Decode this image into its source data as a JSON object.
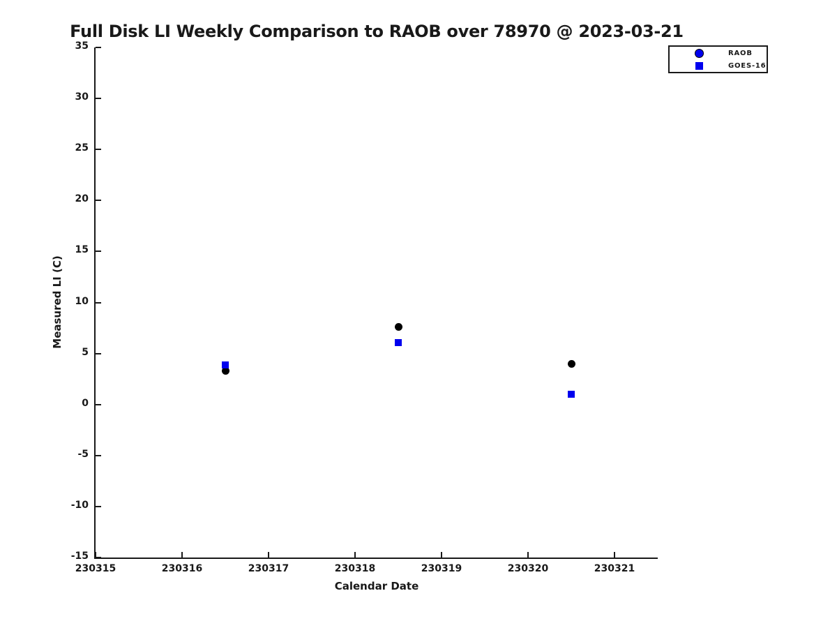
{
  "chart_data": {
    "type": "scatter",
    "title": "Full Disk LI Weekly Comparison to RAOB over 78970 @ 2023-03-21",
    "xlabel": "Calendar Date",
    "ylabel": "Measured LI (C)",
    "xlim": [
      230315,
      230321.5
    ],
    "ylim": [
      -15,
      35
    ],
    "x_ticks": [
      230315,
      230316,
      230317,
      230318,
      230319,
      230320,
      230321
    ],
    "y_ticks": [
      35,
      30,
      25,
      20,
      15,
      10,
      5,
      0,
      -5,
      -10,
      -15
    ],
    "grid": false,
    "colors": {
      "blue": "#0000ee",
      "black": "#000000",
      "axis_and_text": "#191919",
      "background": "#ffffff"
    },
    "legend": {
      "position": "top-right-outside",
      "entries": [
        {
          "label": "RAOB",
          "marker": "circle",
          "marker_face": "#0000ee",
          "marker_edge": "#000000"
        },
        {
          "label": "GOES-16",
          "marker": "square",
          "marker_face": "#0000ee"
        }
      ]
    },
    "series": [
      {
        "name": "RAOB",
        "marker": "circle",
        "plot_marker_color": "#000000",
        "x": [
          230316.5,
          230318.5,
          230320.5
        ],
        "y": [
          3.3,
          7.6,
          4.0
        ]
      },
      {
        "name": "GOES-16",
        "marker": "square",
        "plot_marker_color": "#0000ee",
        "x": [
          230316.5,
          230318.5,
          230320.5
        ],
        "y": [
          3.9,
          6.1,
          1.0
        ]
      }
    ]
  }
}
